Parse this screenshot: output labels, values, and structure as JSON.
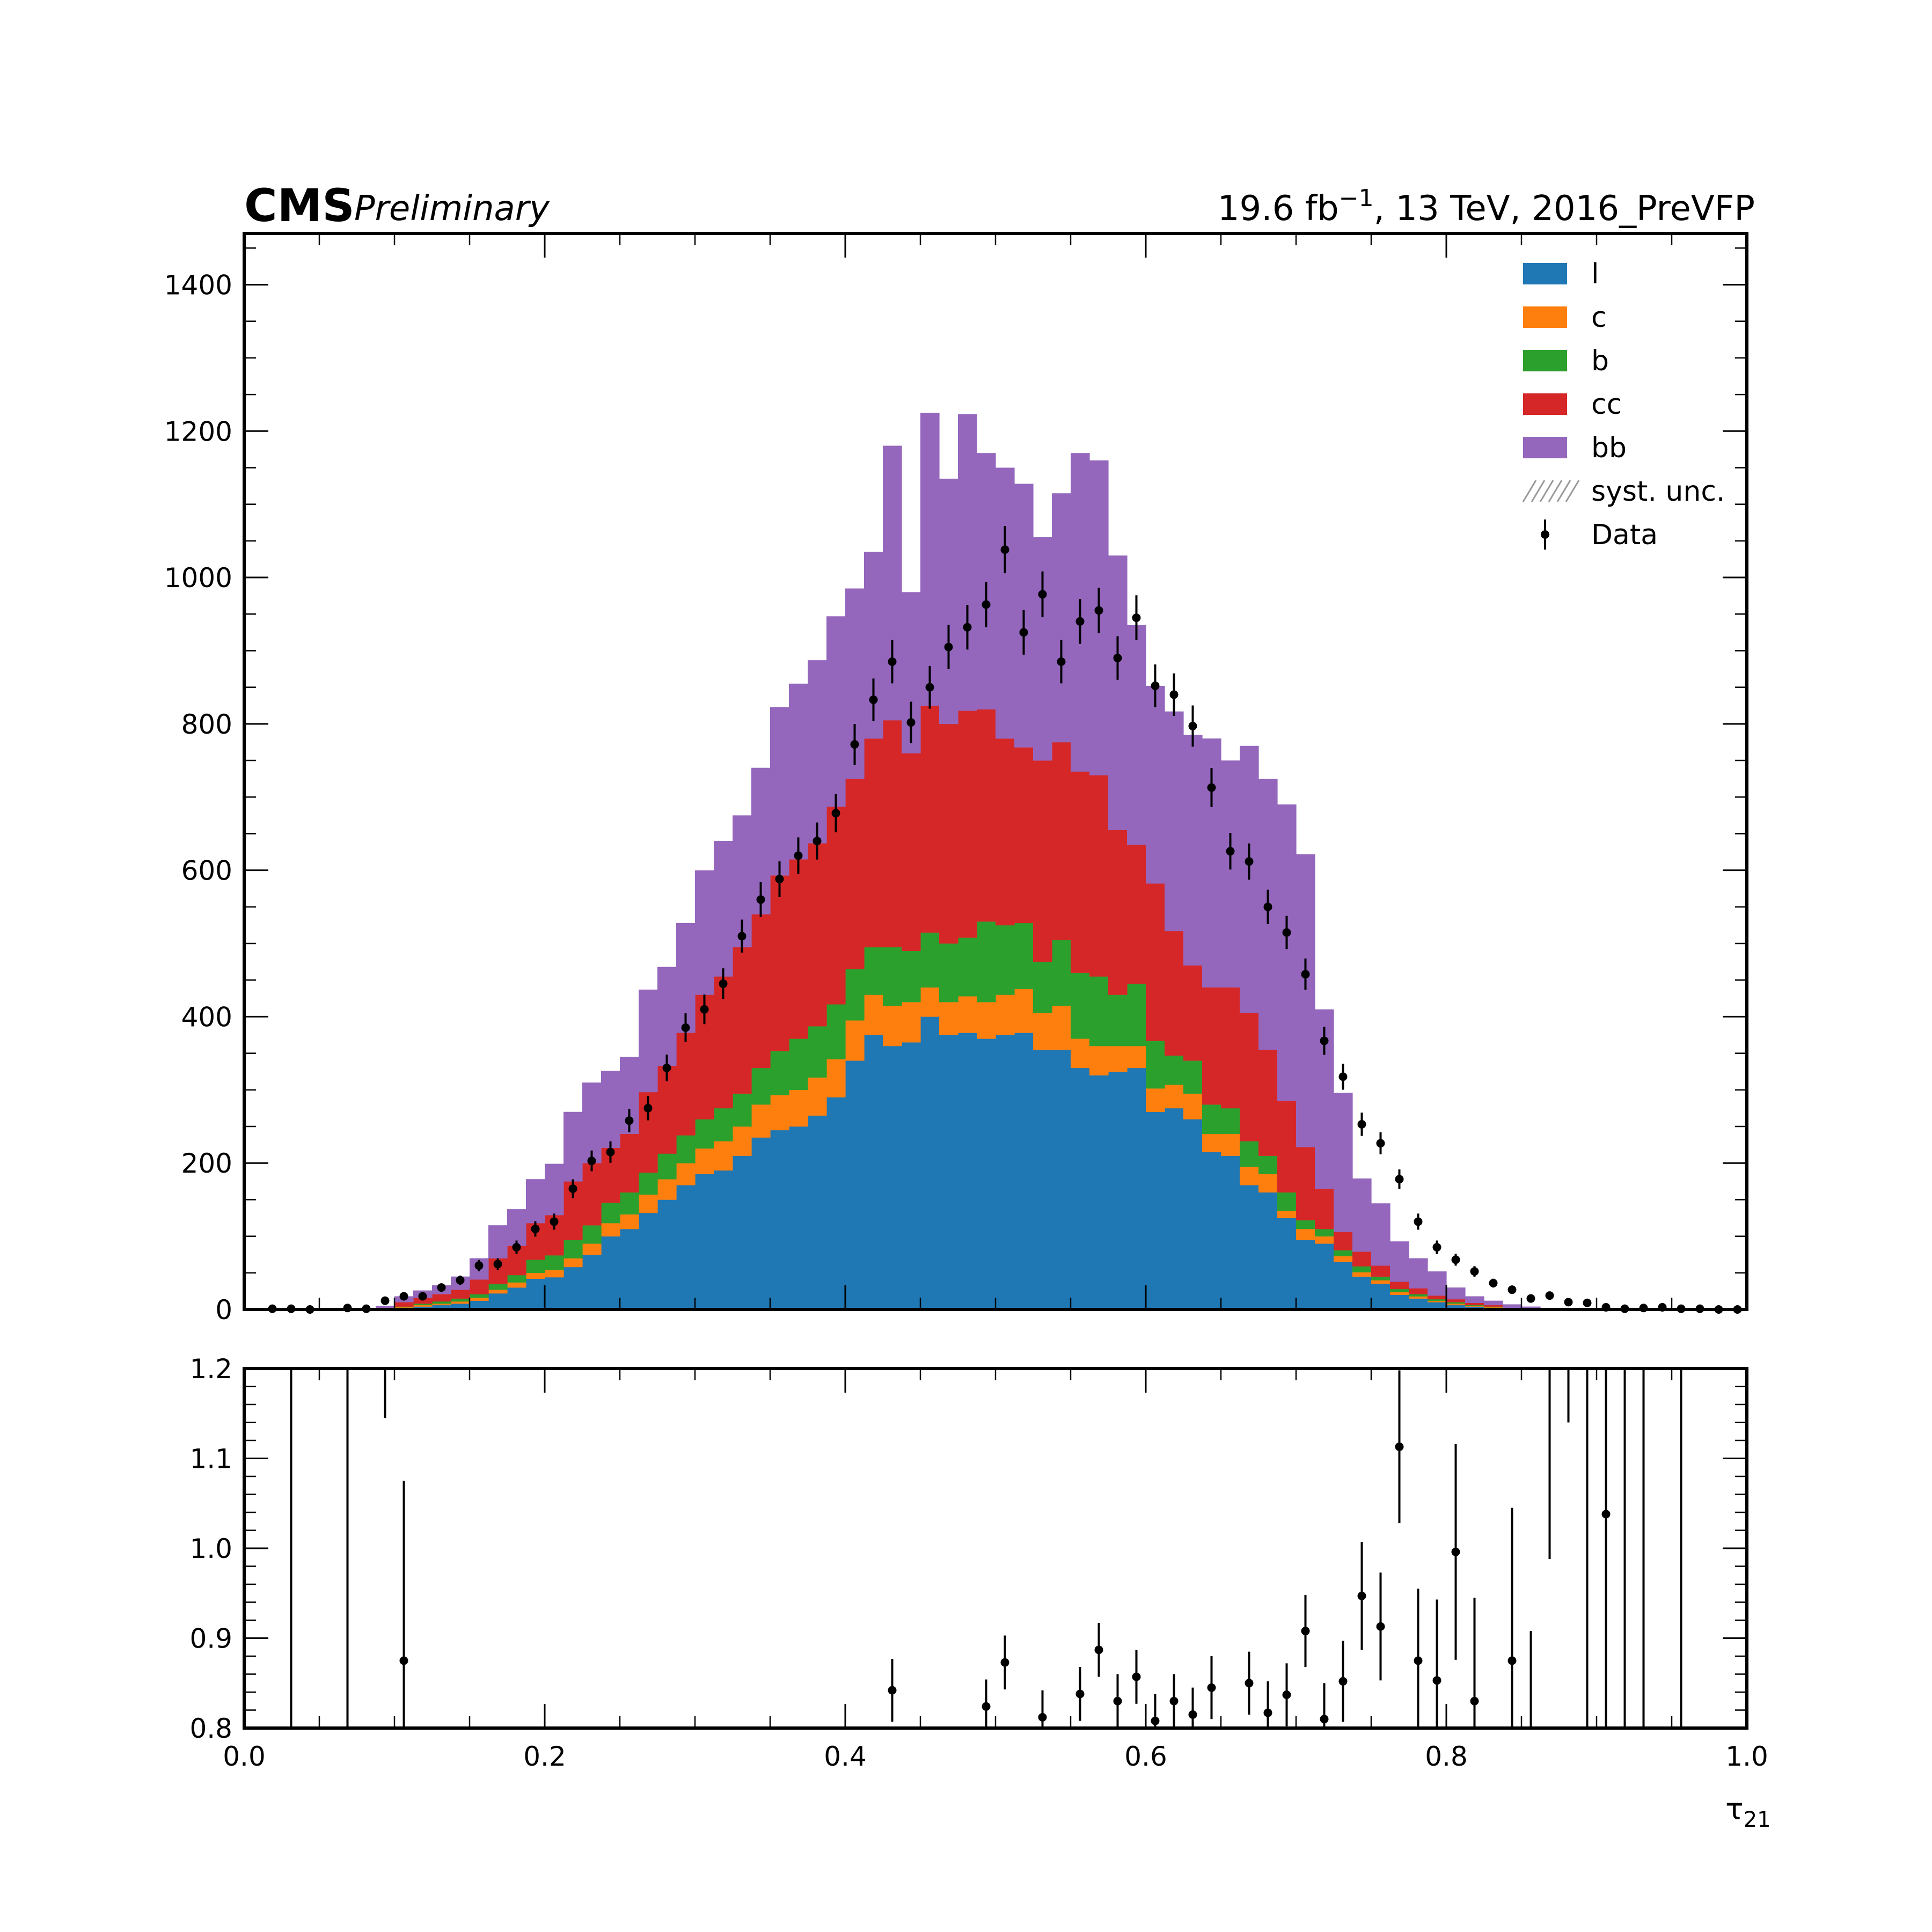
{
  "header": {
    "experiment": "CMS",
    "status": "Preliminary",
    "lumi_base": "19.6 fb",
    "lumi_exp": "−1",
    "lumi_rest": ", 13 TeV, 2016_PreVFP"
  },
  "chart_data": [
    {
      "type": "bar",
      "subtype": "stacked-histogram",
      "xlabel": "τ",
      "xlabel_sub": "21",
      "ylabel": "",
      "xlim": [
        0.0,
        1.0
      ],
      "ylim": [
        0,
        1470
      ],
      "yticks": [
        0,
        200,
        400,
        600,
        800,
        1000,
        1200,
        1400
      ],
      "bin_edges_start": 0.0,
      "bin_width": 0.0125,
      "legend_position": "top-right",
      "series": [
        {
          "name": "l",
          "color": "#1f77b4",
          "values": [
            0,
            0,
            0,
            0,
            0,
            0,
            0,
            0,
            2,
            4,
            6,
            8,
            12,
            22,
            30,
            42,
            44,
            58,
            75,
            100,
            110,
            132,
            150,
            170,
            185,
            190,
            210,
            235,
            245,
            250,
            265,
            290,
            340,
            375,
            360,
            365,
            400,
            375,
            378,
            370,
            375,
            378,
            355,
            355,
            330,
            320,
            325,
            330,
            270,
            275,
            260,
            215,
            210,
            170,
            160,
            125,
            95,
            90,
            65,
            45,
            35,
            20,
            15,
            10,
            6,
            4,
            2,
            1,
            0,
            0,
            0,
            0,
            0,
            0,
            0,
            0,
            0,
            0,
            0,
            0
          ]
        },
        {
          "name": "c",
          "color": "#ff7f0e",
          "values": [
            0,
            0,
            0,
            0,
            0,
            0,
            0,
            0,
            1,
            2,
            2,
            3,
            4,
            5,
            7,
            8,
            10,
            12,
            15,
            18,
            20,
            25,
            28,
            30,
            35,
            40,
            40,
            45,
            48,
            50,
            52,
            52,
            55,
            55,
            55,
            55,
            40,
            45,
            50,
            50,
            55,
            60,
            50,
            60,
            40,
            40,
            35,
            30,
            32,
            32,
            35,
            25,
            30,
            25,
            25,
            10,
            15,
            10,
            8,
            6,
            5,
            4,
            3,
            2,
            2,
            1,
            1,
            0,
            0,
            0,
            0,
            0,
            0,
            0,
            0,
            0,
            0,
            0,
            0,
            0
          ]
        },
        {
          "name": "b",
          "color": "#2ca02c",
          "values": [
            0,
            0,
            0,
            0,
            0,
            0,
            0,
            0,
            1,
            2,
            3,
            4,
            5,
            8,
            10,
            18,
            20,
            25,
            25,
            28,
            30,
            30,
            35,
            38,
            40,
            45,
            45,
            50,
            60,
            70,
            70,
            75,
            70,
            65,
            80,
            70,
            75,
            80,
            80,
            110,
            95,
            90,
            70,
            90,
            90,
            95,
            70,
            85,
            65,
            40,
            45,
            40,
            35,
            35,
            25,
            25,
            12,
            10,
            8,
            8,
            5,
            4,
            3,
            2,
            2,
            1,
            1,
            0,
            0,
            0,
            0,
            0,
            0,
            0,
            0,
            0,
            0,
            0,
            0,
            0
          ]
        },
        {
          "name": "cc",
          "color": "#d62728",
          "values": [
            0,
            0,
            0,
            0,
            0,
            0,
            0,
            2,
            6,
            8,
            10,
            12,
            20,
            35,
            40,
            50,
            55,
            80,
            85,
            75,
            80,
            110,
            120,
            140,
            170,
            180,
            200,
            210,
            240,
            245,
            250,
            270,
            260,
            285,
            310,
            270,
            310,
            300,
            310,
            290,
            255,
            240,
            275,
            270,
            275,
            275,
            225,
            190,
            215,
            170,
            130,
            160,
            165,
            175,
            145,
            125,
            100,
            55,
            25,
            20,
            15,
            10,
            8,
            5,
            4,
            3,
            2,
            1,
            0,
            0,
            0,
            0,
            0,
            0,
            0,
            0,
            0,
            0,
            0,
            0
          ]
        },
        {
          "name": "bb",
          "color": "#9467bd",
          "values": [
            0,
            0,
            0,
            0,
            0,
            0,
            0,
            3,
            8,
            10,
            12,
            18,
            29,
            45,
            50,
            60,
            70,
            95,
            110,
            105,
            105,
            140,
            135,
            150,
            170,
            185,
            180,
            200,
            230,
            240,
            250,
            260,
            260,
            255,
            375,
            220,
            400,
            335,
            405,
            350,
            370,
            360,
            305,
            340,
            435,
            430,
            375,
            300,
            270,
            300,
            315,
            340,
            310,
            365,
            370,
            405,
            400,
            245,
            190,
            100,
            85,
            55,
            41,
            33,
            16,
            9,
            6,
            5,
            4,
            2,
            1,
            1,
            0,
            0,
            0,
            0,
            0,
            0,
            0,
            0
          ]
        }
      ],
      "uncertainty_label": "syst. unc.",
      "data_label": "Data",
      "data_points": {
        "x": [
          0.01875,
          0.03125,
          0.04375,
          0.06875,
          0.08125,
          0.09375,
          0.10625,
          0.11875,
          0.13125,
          0.14375,
          0.15625,
          0.16875,
          0.18125,
          0.19375,
          0.20625,
          0.21875,
          0.23125,
          0.24375,
          0.25625,
          0.26875,
          0.28125,
          0.29375,
          0.30625,
          0.31875,
          0.33125,
          0.34375,
          0.35625,
          0.36875,
          0.38125,
          0.39375,
          0.40625,
          0.41875,
          0.43125,
          0.44375,
          0.45625,
          0.46875,
          0.48125,
          0.49375,
          0.50625,
          0.51875,
          0.53125,
          0.54375,
          0.55625,
          0.56875,
          0.58125,
          0.59375,
          0.60625,
          0.61875,
          0.63125,
          0.64375,
          0.65625,
          0.66875,
          0.68125,
          0.69375,
          0.70625,
          0.71875,
          0.73125,
          0.74375,
          0.75625,
          0.76875,
          0.78125,
          0.79375,
          0.80625,
          0.81875,
          0.83125,
          0.84375,
          0.85625,
          0.86875,
          0.88125,
          0.89375,
          0.90625,
          0.91875,
          0.93125,
          0.94375,
          0.95625,
          0.96875,
          0.98125,
          0.99375
        ],
        "y": [
          1,
          1,
          0,
          2,
          1,
          12,
          18,
          18,
          30,
          40,
          60,
          62,
          85,
          110,
          120,
          165,
          203,
          215,
          258,
          275,
          330,
          385,
          410,
          445,
          510,
          560,
          588,
          620,
          640,
          678,
          772,
          833,
          885,
          802,
          850,
          905,
          932,
          963,
          1038,
          925,
          977,
          885,
          940,
          955,
          890,
          945,
          852,
          840,
          797,
          713,
          626,
          612,
          550,
          515,
          458,
          367,
          318,
          253,
          227,
          178,
          120,
          85,
          68,
          52,
          36,
          27,
          15,
          19,
          10,
          9,
          3,
          1,
          2,
          3,
          1,
          1,
          0,
          0
        ],
        "yerr": [
          1,
          1,
          1,
          1.5,
          1,
          3.5,
          4.3,
          4.3,
          5.5,
          6.3,
          7.7,
          7.9,
          9.2,
          10.5,
          11,
          12.8,
          14.2,
          14.7,
          16,
          16.6,
          18.2,
          19.6,
          20.2,
          21.1,
          22.6,
          23.7,
          24.2,
          24.9,
          25.3,
          26,
          27.8,
          28.9,
          29.7,
          28.3,
          29.2,
          30.1,
          30.5,
          31,
          32.2,
          30.4,
          31.3,
          29.7,
          30.7,
          30.9,
          29.8,
          30.7,
          29.2,
          29,
          28.2,
          26.7,
          25,
          24.7,
          23.5,
          22.7,
          21.4,
          19.2,
          17.8,
          15.9,
          15.1,
          13.3,
          11,
          9.2,
          8.2,
          7.2,
          6,
          5.2,
          3.9,
          4.4,
          3.2,
          3,
          1.7,
          1,
          1.4,
          1.7,
          1,
          1,
          0,
          0
        ]
      }
    },
    {
      "type": "scatter",
      "subtype": "ratio",
      "xlabel": "τ",
      "xlabel_sub": "21",
      "ylabel": "",
      "xlim": [
        0.0,
        1.0
      ],
      "ylim": [
        0.8,
        1.2
      ],
      "xticks": [
        0.0,
        0.2,
        0.4,
        0.6,
        0.8,
        1.0
      ],
      "yticks": [
        0.8,
        0.9,
        1.0,
        1.1,
        1.2
      ],
      "points": {
        "x": [
          0.10625,
          0.43125,
          0.49375,
          0.50625,
          0.53125,
          0.55625,
          0.56875,
          0.58125,
          0.59375,
          0.60625,
          0.61875,
          0.63125,
          0.64375,
          0.66875,
          0.68125,
          0.69375,
          0.70625,
          0.71875,
          0.73125,
          0.74375,
          0.75625,
          0.76875,
          0.78125,
          0.79375,
          0.80625,
          0.81875,
          0.84375,
          0.90625
        ],
        "y": [
          0.875,
          0.842,
          0.824,
          0.873,
          0.812,
          0.838,
          0.887,
          0.83,
          0.857,
          0.808,
          0.83,
          0.815,
          0.845,
          0.85,
          0.817,
          0.837,
          0.908,
          0.81,
          0.852,
          0.947,
          0.913,
          1.113,
          0.875,
          0.853,
          0.996,
          0.83,
          0.875,
          1.038
        ],
        "yerr": [
          0.2,
          0.035,
          0.03,
          0.03,
          0.03,
          0.03,
          0.03,
          0.03,
          0.03,
          0.03,
          0.03,
          0.03,
          0.035,
          0.035,
          0.035,
          0.035,
          0.04,
          0.04,
          0.045,
          0.06,
          0.06,
          0.085,
          0.08,
          0.09,
          0.12,
          0.115,
          0.17,
          0.3
        ]
      },
      "offscale_bars": [
        {
          "x": 0.03125,
          "y_low": 0.8,
          "y_high": 1.2
        },
        {
          "x": 0.06875,
          "y_low": 0.8,
          "y_high": 1.2
        },
        {
          "x": 0.09375,
          "y_low": 1.145,
          "y_high": 1.2
        },
        {
          "x": 0.85625,
          "y_low": 0.8,
          "y_high": 0.908
        },
        {
          "x": 0.86875,
          "y_low": 0.988,
          "y_high": 1.2
        },
        {
          "x": 0.88125,
          "y_low": 1.14,
          "y_high": 1.2
        },
        {
          "x": 0.89375,
          "y_low": 0.8,
          "y_high": 1.2
        },
        {
          "x": 0.91875,
          "y_low": 0.8,
          "y_high": 1.2
        },
        {
          "x": 0.93125,
          "y_low": 0.8,
          "y_high": 1.2
        },
        {
          "x": 0.95625,
          "y_low": 0.8,
          "y_high": 1.2
        }
      ]
    }
  ]
}
